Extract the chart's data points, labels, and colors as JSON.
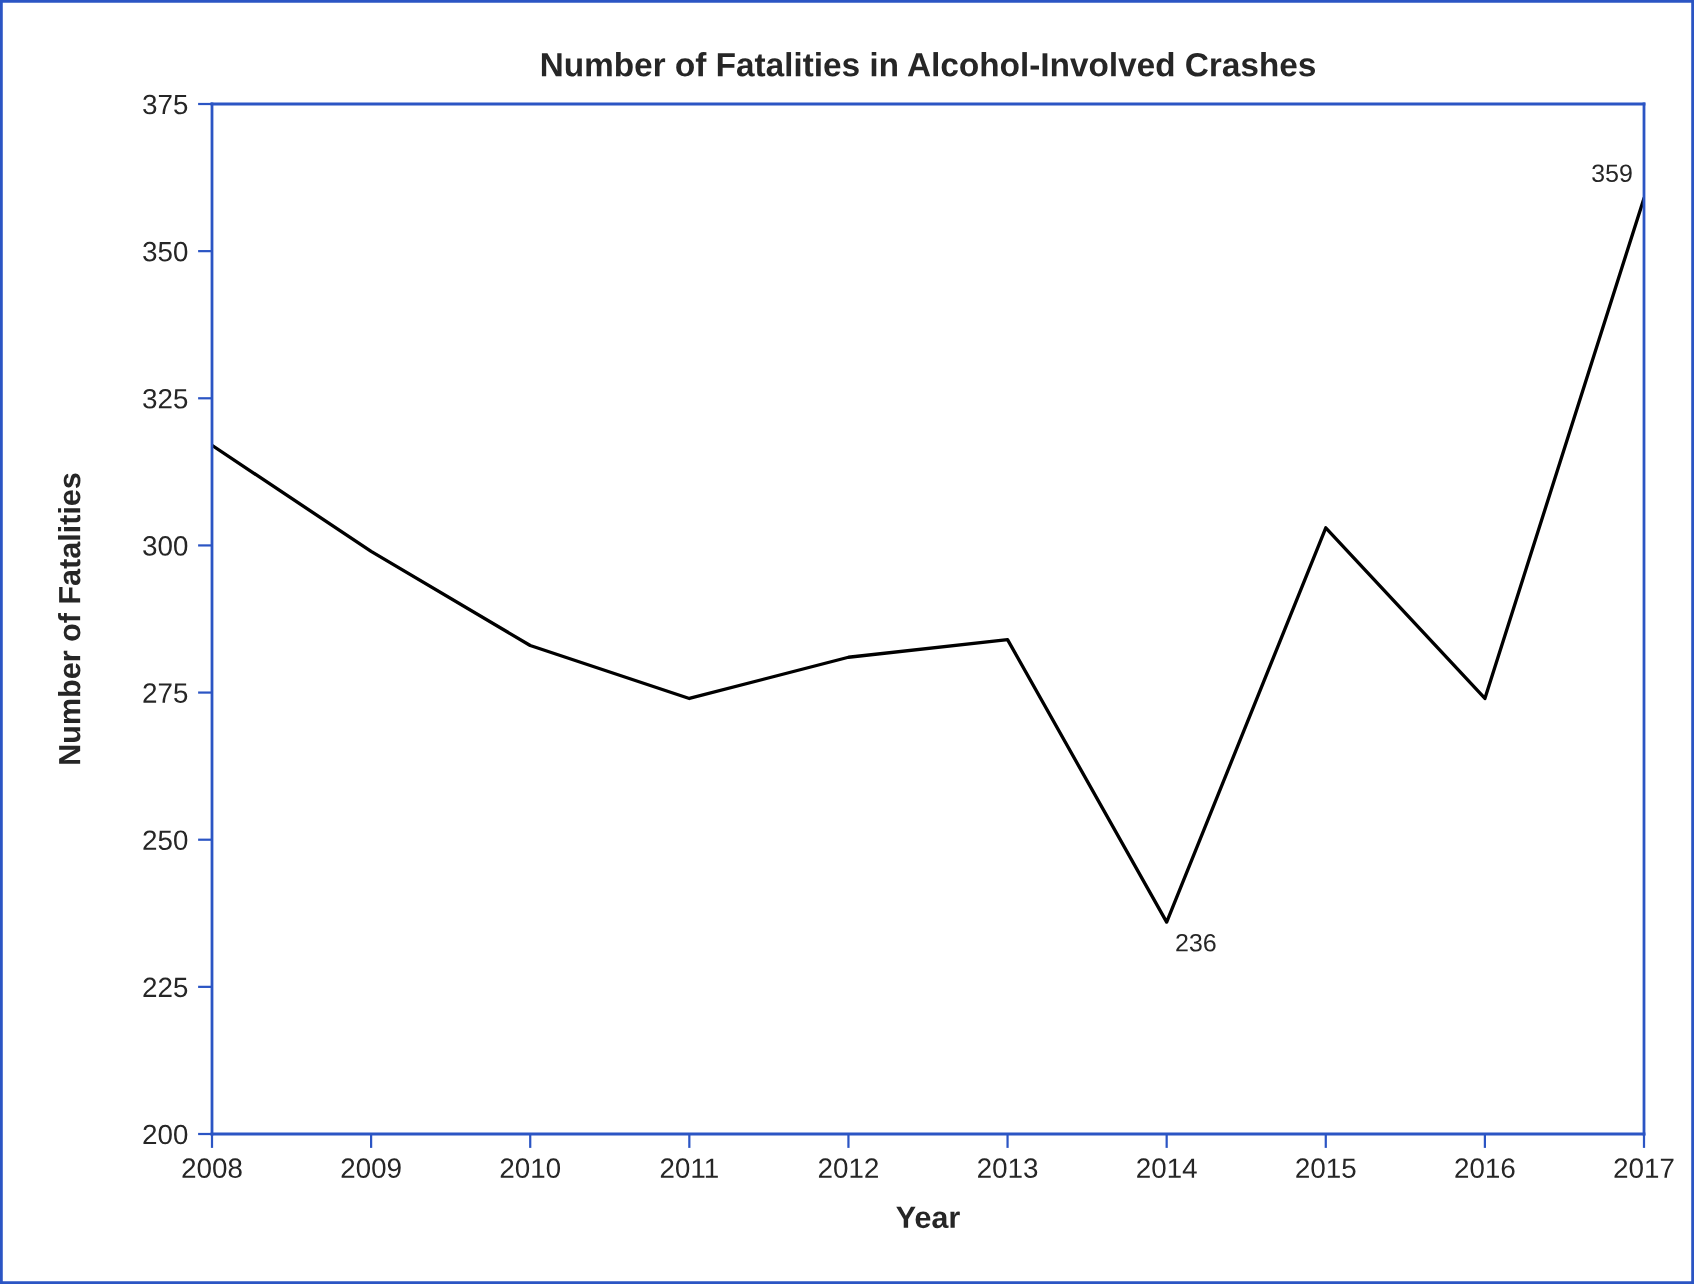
{
  "chart_data": {
    "type": "line",
    "title": "Number of Fatalities in Alcohol-Involved Crashes",
    "xlabel": "Year",
    "ylabel": "Number of Fatalities",
    "x": [
      2008,
      2009,
      2010,
      2011,
      2012,
      2013,
      2014,
      2015,
      2016,
      2017
    ],
    "series": [
      {
        "color": "#000000",
        "values": [
          317,
          299,
          283,
          274,
          281,
          284,
          236,
          303,
          274,
          359
        ],
        "value_labels": [
          null,
          null,
          null,
          null,
          null,
          null,
          "236",
          null,
          null,
          "359"
        ]
      }
    ],
    "xlim": [
      2008,
      2017
    ],
    "xticks": [
      2008,
      2009,
      2010,
      2011,
      2012,
      2013,
      2014,
      2015,
      2016,
      2017
    ],
    "ylim": [
      200,
      375
    ],
    "yticks": [
      200,
      225,
      250,
      275,
      300,
      325,
      350,
      375
    ],
    "grid": false,
    "marker": "none",
    "line_style": "solid"
  }
}
